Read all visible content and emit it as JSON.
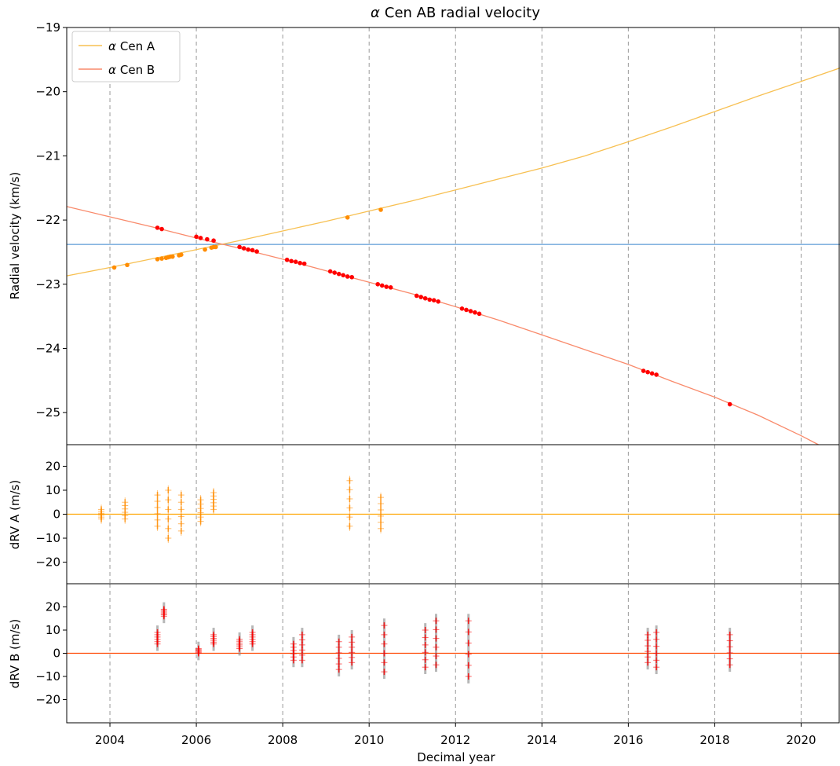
{
  "chart_data": [
    {
      "type": "line",
      "title_prefix": "α",
      "title": "Cen AB radial velocity",
      "xlabel": "",
      "ylabel": "Radial velocity (km/s)",
      "xlim": [
        2003.0,
        2020.9
      ],
      "ylim": [
        -25.5,
        -19.0
      ],
      "xticks": [
        2004,
        2006,
        2008,
        2010,
        2012,
        2014,
        2016,
        2018,
        2020
      ],
      "yticks": [
        -25,
        -24,
        -23,
        -22,
        -21,
        -20,
        -19
      ],
      "ytick_labels": [
        "−25",
        "−24",
        "−23",
        "−22",
        "−21",
        "−20",
        "−19"
      ],
      "vertical_dashed_lines_at": [
        2004,
        2006,
        2008,
        2010,
        2012,
        2014,
        2016,
        2018,
        2020
      ],
      "horizontal_line": {
        "y": -22.38,
        "color": "#5b9bd5"
      },
      "legend": {
        "position": "upper-left",
        "entries": [
          {
            "prefix": "α",
            "label": "Cen A",
            "color": "#f7c052"
          },
          {
            "prefix": "α",
            "label": "Cen B",
            "color": "#f98a6b"
          }
        ]
      },
      "series": [
        {
          "name": "α Cen A",
          "color": "#f7c052",
          "point_color": "#ff8c00",
          "model_x": [
            2003.0,
            2004.0,
            2005.0,
            2006.0,
            2007.0,
            2008.0,
            2009.0,
            2010.0,
            2011.0,
            2012.0,
            2013.0,
            2014.0,
            2015.0,
            2016.0,
            2017.0,
            2018.0,
            2019.0,
            2020.0,
            2020.9
          ],
          "model_y": [
            -22.87,
            -22.74,
            -22.6,
            -22.46,
            -22.32,
            -22.17,
            -22.02,
            -21.86,
            -21.7,
            -21.53,
            -21.36,
            -21.19,
            -21.0,
            -20.78,
            -20.55,
            -20.31,
            -20.07,
            -19.84,
            -19.63
          ],
          "obs_x": [
            2004.1,
            2004.4,
            2005.1,
            2005.2,
            2005.3,
            2005.35,
            2005.4,
            2005.45,
            2005.6,
            2005.65,
            2006.2,
            2006.35,
            2006.4,
            2006.45,
            2009.5,
            2010.27
          ],
          "obs_y": [
            -22.74,
            -22.7,
            -22.61,
            -22.6,
            -22.59,
            -22.58,
            -22.57,
            -22.57,
            -22.55,
            -22.54,
            -22.46,
            -22.43,
            -22.42,
            -22.42,
            -21.96,
            -21.84
          ]
        },
        {
          "name": "α Cen B",
          "color": "#f98a6b",
          "point_color": "#ff0000",
          "model_x": [
            2003.0,
            2004.0,
            2005.0,
            2006.0,
            2007.0,
            2008.0,
            2009.0,
            2010.0,
            2011.0,
            2012.0,
            2013.0,
            2014.0,
            2015.0,
            2016.0,
            2017.0,
            2018.0,
            2019.0,
            2020.0,
            2020.4
          ],
          "model_y": [
            -21.79,
            -21.95,
            -22.11,
            -22.28,
            -22.44,
            -22.61,
            -22.79,
            -22.97,
            -23.15,
            -23.35,
            -23.56,
            -23.79,
            -24.02,
            -24.25,
            -24.51,
            -24.76,
            -25.04,
            -25.36,
            -25.5
          ],
          "obs_x": [
            2005.1,
            2005.2,
            2006.0,
            2006.1,
            2006.25,
            2006.4,
            2007.0,
            2007.1,
            2007.2,
            2007.3,
            2007.4,
            2008.1,
            2008.2,
            2008.3,
            2008.4,
            2008.5,
            2009.1,
            2009.2,
            2009.3,
            2009.4,
            2009.5,
            2009.6,
            2010.2,
            2010.3,
            2010.4,
            2010.5,
            2011.1,
            2011.2,
            2011.3,
            2011.4,
            2011.5,
            2011.6,
            2012.15,
            2012.25,
            2012.35,
            2012.45,
            2012.55,
            2016.35,
            2016.45,
            2016.55,
            2016.65,
            2018.35
          ],
          "obs_y": [
            -22.12,
            -22.14,
            -22.26,
            -22.28,
            -22.3,
            -22.32,
            -22.42,
            -22.44,
            -22.46,
            -22.47,
            -22.49,
            -22.62,
            -22.64,
            -22.65,
            -22.67,
            -22.68,
            -22.8,
            -22.82,
            -22.84,
            -22.86,
            -22.88,
            -22.89,
            -23.0,
            -23.02,
            -23.04,
            -23.05,
            -23.18,
            -23.2,
            -23.22,
            -23.24,
            -23.25,
            -23.27,
            -23.38,
            -23.4,
            -23.42,
            -23.44,
            -23.46,
            -24.35,
            -24.37,
            -24.39,
            -24.41,
            -24.87
          ]
        }
      ]
    },
    {
      "type": "scatter",
      "ylabel": "dRV A (m/s)",
      "xlim": [
        2003.0,
        2020.9
      ],
      "ylim": [
        -29,
        29
      ],
      "yticks": [
        -20,
        -10,
        0,
        10,
        20
      ],
      "ytick_labels": [
        "−20",
        "−10",
        "0",
        "10",
        "20"
      ],
      "zero_line_color": "#ffa500",
      "point_color": "#ff8c00",
      "clusters": [
        {
          "x": 2003.8,
          "y": [
            -2,
            2
          ]
        },
        {
          "x": 2004.35,
          "y": [
            -2,
            5
          ]
        },
        {
          "x": 2005.1,
          "y": [
            -5,
            8
          ]
        },
        {
          "x": 2005.35,
          "y": [
            -10,
            10
          ]
        },
        {
          "x": 2005.65,
          "y": [
            -7,
            8
          ]
        },
        {
          "x": 2006.1,
          "y": [
            -3,
            6
          ]
        },
        {
          "x": 2006.4,
          "y": [
            2,
            9
          ]
        },
        {
          "x": 2009.55,
          "y": [
            -5,
            14
          ]
        },
        {
          "x": 2010.27,
          "y": [
            -6,
            7
          ]
        }
      ]
    },
    {
      "type": "scatter",
      "ylabel": "dRV B (m/s)",
      "xlabel": "Decimal year",
      "xlim": [
        2003.0,
        2020.9
      ],
      "ylim": [
        -30,
        30
      ],
      "yticks": [
        -20,
        -10,
        0,
        10,
        20
      ],
      "ytick_labels": [
        "−20",
        "−10",
        "0",
        "10",
        "20"
      ],
      "zero_line_color": "#ff4500",
      "point_color": "#ff0000",
      "clusters": [
        {
          "x": 2005.1,
          "y": [
            4,
            9
          ]
        },
        {
          "x": 2005.25,
          "y": [
            16,
            19
          ]
        },
        {
          "x": 2006.05,
          "y": [
            0,
            2
          ]
        },
        {
          "x": 2006.4,
          "y": [
            4,
            8
          ]
        },
        {
          "x": 2007.0,
          "y": [
            2,
            6
          ]
        },
        {
          "x": 2007.3,
          "y": [
            4,
            9
          ]
        },
        {
          "x": 2008.25,
          "y": [
            -3,
            4
          ]
        },
        {
          "x": 2008.45,
          "y": [
            -3,
            8
          ]
        },
        {
          "x": 2009.3,
          "y": [
            -7,
            5
          ]
        },
        {
          "x": 2009.6,
          "y": [
            -4,
            7
          ]
        },
        {
          "x": 2010.35,
          "y": [
            -8,
            12
          ]
        },
        {
          "x": 2011.3,
          "y": [
            -6,
            10
          ]
        },
        {
          "x": 2011.55,
          "y": [
            -5,
            14
          ]
        },
        {
          "x": 2012.3,
          "y": [
            -10,
            14
          ]
        },
        {
          "x": 2016.45,
          "y": [
            -4,
            8
          ]
        },
        {
          "x": 2016.65,
          "y": [
            -6,
            9
          ]
        },
        {
          "x": 2018.35,
          "y": [
            -5,
            8
          ]
        }
      ]
    }
  ]
}
